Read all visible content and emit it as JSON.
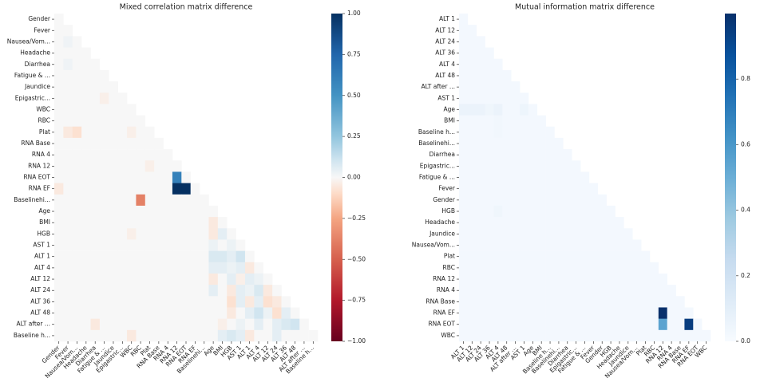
{
  "chart_data": [
    {
      "type": "heatmap",
      "title": "Mixed correlation matrix difference",
      "colormap": "RdBu",
      "categories": [
        "Gender",
        "Fever",
        "Nausea/Vom...",
        "Headache",
        "Diarrhea",
        "Fatigue & ...",
        "Jaundice",
        "Epigastric...",
        "WBC",
        "RBC",
        "Plat",
        "RNA Base",
        "RNA 4",
        "RNA 12",
        "RNA EOT",
        "RNA EF",
        "Baselinehi...",
        "Age",
        "BMI",
        "HGB",
        "AST 1",
        "ALT 1",
        "ALT 4",
        "ALT 12",
        "ALT 24",
        "ALT 36",
        "ALT 48",
        "ALT after ...",
        "Baseline h..."
      ],
      "clim": [
        -1,
        1
      ],
      "cticks": [
        {
          "value": 1,
          "label": "1.00"
        },
        {
          "value": 0.75,
          "label": "0.75"
        },
        {
          "value": 0.5,
          "label": "0.50"
        },
        {
          "value": 0.25,
          "label": "0.25"
        },
        {
          "value": 0,
          "label": "0.00"
        },
        {
          "value": -0.25,
          "label": "−0.25"
        },
        {
          "value": -0.5,
          "label": "−0.50"
        },
        {
          "value": -0.75,
          "label": "−0.75"
        },
        {
          "value": -1,
          "label": "−1.00"
        }
      ],
      "matrix": [
        [
          0
        ],
        [
          0,
          0
        ],
        [
          0,
          0.02,
          0
        ],
        [
          0,
          0,
          0,
          0
        ],
        [
          0,
          0.02,
          0,
          0,
          0
        ],
        [
          0,
          0,
          0,
          0,
          0,
          0
        ],
        [
          0,
          0,
          0,
          0,
          0,
          0,
          0
        ],
        [
          0,
          0,
          0,
          0,
          0,
          -0.03,
          0,
          0
        ],
        [
          0,
          0,
          0,
          0,
          0,
          0,
          0,
          0,
          0
        ],
        [
          0,
          0,
          0,
          0,
          0,
          0,
          0,
          0,
          0,
          0
        ],
        [
          0,
          -0.05,
          -0.08,
          0,
          0,
          0,
          0,
          0,
          -0.03,
          0,
          0
        ],
        [
          0,
          0,
          0,
          0,
          0,
          0,
          0,
          0,
          0,
          0,
          0,
          0
        ],
        [
          0,
          0,
          0,
          0,
          0,
          0,
          0,
          0,
          0,
          0,
          0,
          0,
          0
        ],
        [
          0,
          0,
          0,
          0,
          0,
          0,
          0,
          0,
          0,
          0,
          -0.03,
          0,
          0,
          0
        ],
        [
          0,
          0,
          0,
          0,
          0,
          0,
          0,
          0,
          0,
          0,
          0,
          0,
          0,
          0.6,
          0
        ],
        [
          -0.05,
          0,
          0,
          0,
          0,
          0,
          0,
          0,
          0,
          0,
          0,
          0,
          0,
          1,
          1,
          0
        ],
        [
          0,
          0,
          0,
          0,
          0,
          0,
          0,
          0,
          0,
          -0.38,
          0,
          0,
          0,
          0,
          0,
          0,
          0
        ],
        [
          0,
          0,
          0,
          0,
          0,
          0,
          0,
          0,
          0,
          0,
          0,
          0,
          0,
          0,
          0,
          0,
          0,
          0
        ],
        [
          0,
          0,
          0,
          0,
          0,
          0,
          0,
          0,
          0,
          0,
          0,
          0,
          0,
          0,
          0,
          0,
          0,
          -0.05,
          0
        ],
        [
          0,
          0,
          0,
          0,
          0,
          0,
          0,
          0,
          -0.03,
          0,
          0,
          0,
          0,
          0,
          0,
          0,
          0,
          -0.05,
          0.05,
          0
        ],
        [
          0,
          0,
          0,
          0,
          0,
          0,
          0,
          0,
          0,
          0,
          0,
          0,
          0,
          0,
          0,
          0,
          0,
          0.03,
          0,
          0.03,
          0
        ],
        [
          0,
          0,
          0,
          0,
          0,
          0,
          0,
          0,
          0,
          0,
          0,
          0,
          0,
          0,
          0,
          0,
          0,
          0.08,
          0.08,
          0.05,
          0.1,
          0
        ],
        [
          0,
          0,
          0,
          0,
          0,
          0,
          0,
          0,
          0,
          0,
          0,
          0,
          0,
          0,
          0,
          0,
          0,
          0.05,
          0.05,
          0.03,
          0.05,
          -0.05,
          0
        ],
        [
          0,
          0,
          0,
          0,
          0,
          0,
          0,
          0,
          0,
          0,
          0,
          0,
          0,
          0,
          0,
          0,
          0,
          -0.05,
          0,
          0.05,
          -0.03,
          0.05,
          0.03,
          0
        ],
        [
          0,
          0,
          0,
          0,
          0,
          0,
          0,
          0,
          0,
          0,
          0,
          0,
          0,
          0,
          0,
          0,
          0,
          0.05,
          0,
          -0.05,
          0.05,
          0.03,
          0.08,
          -0.05,
          0
        ],
        [
          0,
          0,
          0,
          0,
          0,
          0,
          0,
          0,
          0,
          0,
          0,
          0,
          0,
          0,
          0,
          0,
          0,
          0,
          0,
          -0.08,
          0.05,
          -0.05,
          0.05,
          -0.08,
          -0.05,
          0
        ],
        [
          0,
          0,
          0,
          0,
          0,
          0,
          0,
          0,
          0,
          0,
          0,
          0,
          0,
          0,
          0,
          0,
          0,
          0,
          0,
          -0.05,
          0,
          0.05,
          0.1,
          0.03,
          -0.08,
          0.05,
          0
        ],
        [
          0,
          0,
          0,
          0,
          -0.05,
          0,
          0,
          0,
          0,
          0,
          0,
          0,
          0,
          0,
          0,
          0,
          0,
          0,
          -0.03,
          0,
          0.03,
          0,
          0.05,
          0,
          0.05,
          0.08,
          0.1,
          0
        ],
        [
          0,
          0,
          0,
          0,
          0,
          0,
          0,
          0,
          -0.05,
          0,
          0,
          0,
          0,
          0,
          0,
          0,
          0,
          0,
          0.05,
          0.08,
          0.05,
          -0.05,
          0,
          0,
          0.05,
          0,
          0,
          0,
          0
        ]
      ]
    },
    {
      "type": "heatmap",
      "title": "Mutual information matrix difference",
      "colormap": "Blues",
      "categories": [
        "ALT 1",
        "ALT 12",
        "ALT 24",
        "ALT 36",
        "ALT 4",
        "ALT 48",
        "ALT after ...",
        "AST 1",
        "Age",
        "BMI",
        "Baseline h...",
        "Baselinehi...",
        "Diarrhea",
        "Epigastric...",
        "Fatigue & ...",
        "Fever",
        "Gender",
        "HGB",
        "Headache",
        "Jaundice",
        "Nausea/Vom...",
        "Plat",
        "RBC",
        "RNA 12",
        "RNA 4",
        "RNA Base",
        "RNA EF",
        "RNA EOT",
        "WBC"
      ],
      "clim": [
        0,
        1
      ],
      "cticks": [
        {
          "value": 0,
          "label": "0.0"
        },
        {
          "value": 0.2,
          "label": "0.2"
        },
        {
          "value": 0.4,
          "label": "0.4"
        },
        {
          "value": 0.6,
          "label": "0.6"
        },
        {
          "value": 0.8,
          "label": "0.8"
        }
      ],
      "matrix": [
        [
          0.02
        ],
        [
          0.02,
          0.02
        ],
        [
          0.02,
          0.02,
          0.02
        ],
        [
          0.02,
          0.02,
          0.02,
          0.02
        ],
        [
          0.02,
          0.02,
          0.02,
          0.02,
          0.02
        ],
        [
          0.02,
          0.02,
          0.02,
          0.02,
          0.02,
          0.02
        ],
        [
          0.02,
          0.02,
          0.02,
          0.02,
          0.02,
          0.02,
          0.02
        ],
        [
          0.02,
          0.02,
          0.02,
          0.02,
          0.02,
          0.02,
          0.02,
          0.02
        ],
        [
          0.06,
          0.06,
          0.06,
          0.04,
          0.06,
          0.02,
          0.02,
          0.05,
          0.02
        ],
        [
          0.02,
          0.02,
          0.02,
          0.02,
          0.03,
          0.02,
          0.02,
          0.02,
          0.02,
          0.02
        ],
        [
          0.02,
          0.02,
          0.02,
          0.02,
          0.03,
          0.02,
          0.02,
          0.02,
          0.02,
          0.02,
          0.02
        ],
        [
          0.02,
          0.02,
          0.02,
          0.02,
          0.02,
          0.02,
          0.02,
          0.02,
          0.02,
          0.02,
          0.02,
          0.02
        ],
        [
          0.02,
          0.02,
          0.02,
          0.02,
          0.02,
          0.02,
          0.02,
          0.02,
          0.02,
          0.02,
          0.02,
          0.02,
          0.02
        ],
        [
          0.02,
          0.02,
          0.02,
          0.02,
          0.02,
          0.02,
          0.02,
          0.02,
          0.02,
          0.02,
          0.02,
          0.02,
          0.02,
          0.02
        ],
        [
          0.02,
          0.02,
          0.02,
          0.02,
          0.02,
          0.02,
          0.02,
          0.02,
          0.02,
          0.02,
          0.02,
          0.02,
          0.02,
          0.02,
          0.02
        ],
        [
          0.02,
          0.02,
          0.02,
          0.02,
          0.02,
          0.02,
          0.02,
          0.02,
          0.02,
          0.02,
          0.02,
          0.02,
          0.02,
          0.02,
          0.02,
          0.02
        ],
        [
          0.02,
          0.02,
          0.02,
          0.02,
          0.02,
          0.02,
          0.02,
          0.02,
          0.02,
          0.02,
          0.02,
          0.02,
          0.02,
          0.02,
          0.02,
          0.02,
          0.02
        ],
        [
          0.02,
          0.02,
          0.02,
          0.02,
          0.04,
          0.02,
          0.02,
          0.02,
          0.02,
          0.02,
          0.02,
          0.02,
          0.02,
          0.02,
          0.02,
          0.02,
          0.02,
          0.02
        ],
        [
          0.02,
          0.02,
          0.02,
          0.02,
          0.02,
          0.02,
          0.02,
          0.02,
          0.02,
          0.02,
          0.02,
          0.02,
          0.02,
          0.02,
          0.02,
          0.02,
          0.02,
          0.02,
          0.02
        ],
        [
          0.02,
          0.02,
          0.02,
          0.02,
          0.02,
          0.02,
          0.02,
          0.02,
          0.02,
          0.02,
          0.02,
          0.02,
          0.02,
          0.02,
          0.02,
          0.02,
          0.02,
          0.02,
          0.02,
          0.02
        ],
        [
          0.02,
          0.02,
          0.02,
          0.02,
          0.02,
          0.02,
          0.02,
          0.02,
          0.02,
          0.02,
          0.02,
          0.02,
          0.02,
          0.02,
          0.02,
          0.02,
          0.02,
          0.02,
          0.02,
          0.02,
          0.02
        ],
        [
          0.02,
          0.02,
          0.02,
          0.02,
          0.02,
          0.02,
          0.02,
          0.02,
          0.02,
          0.02,
          0.02,
          0.02,
          0.02,
          0.02,
          0.02,
          0.02,
          0.02,
          0.02,
          0.02,
          0.02,
          0.02,
          0.02
        ],
        [
          0.02,
          0.02,
          0.02,
          0.02,
          0.02,
          0.02,
          0.02,
          0.02,
          0.02,
          0.02,
          0.02,
          0.02,
          0.02,
          0.02,
          0.02,
          0.02,
          0.02,
          0.02,
          0.02,
          0.02,
          0.02,
          0.02,
          0.02
        ],
        [
          0.02,
          0.02,
          0.02,
          0.02,
          0.02,
          0.02,
          0.02,
          0.02,
          0.02,
          0.02,
          0.02,
          0.02,
          0.02,
          0.02,
          0.02,
          0.02,
          0.02,
          0.02,
          0.02,
          0.02,
          0.02,
          0.02,
          0.02,
          0.02
        ],
        [
          0.02,
          0.02,
          0.02,
          0.02,
          0.02,
          0.02,
          0.02,
          0.02,
          0.02,
          0.02,
          0.02,
          0.02,
          0.02,
          0.02,
          0.02,
          0.02,
          0.02,
          0.02,
          0.02,
          0.02,
          0.02,
          0.02,
          0.02,
          0.02,
          0.02
        ],
        [
          0.02,
          0.02,
          0.02,
          0.02,
          0.02,
          0.02,
          0.02,
          0.02,
          0.02,
          0.02,
          0.02,
          0.02,
          0.02,
          0.02,
          0.02,
          0.02,
          0.02,
          0.02,
          0.02,
          0.02,
          0.02,
          0.02,
          0.02,
          0.02,
          0.02,
          0.02
        ],
        [
          0.02,
          0.02,
          0.02,
          0.02,
          0.02,
          0.02,
          0.02,
          0.02,
          0.02,
          0.02,
          0.02,
          0.02,
          0.02,
          0.02,
          0.02,
          0.02,
          0.02,
          0.02,
          0.02,
          0.02,
          0.02,
          0.02,
          0.02,
          1,
          0.02,
          0.02,
          0.02
        ],
        [
          0.02,
          0.02,
          0.02,
          0.02,
          0.02,
          0.02,
          0.02,
          0.02,
          0.02,
          0.02,
          0.02,
          0.02,
          0.02,
          0.02,
          0.02,
          0.02,
          0.02,
          0.02,
          0.02,
          0.02,
          0.02,
          0.02,
          0.02,
          0.55,
          0.02,
          0.02,
          0.95,
          0.02
        ],
        [
          0.02,
          0.02,
          0.02,
          0.02,
          0.02,
          0.02,
          0.02,
          0.02,
          0.02,
          0.02,
          0.02,
          0.02,
          0.02,
          0.02,
          0.02,
          0.02,
          0.02,
          0.02,
          0.02,
          0.02,
          0.02,
          0.02,
          0.02,
          0.02,
          0.02,
          0.02,
          0.02,
          0.02,
          0.02
        ]
      ]
    }
  ]
}
